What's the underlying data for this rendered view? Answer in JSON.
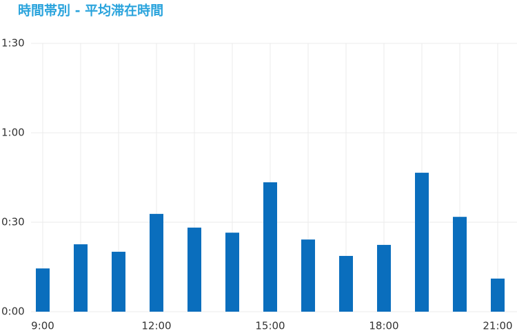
{
  "chart_data": {
    "type": "bar",
    "title": "時間帯別 - 平均滞在時間",
    "categories": [
      "9:00",
      null,
      null,
      "12:00",
      null,
      null,
      "15:00",
      null,
      null,
      "18:00",
      null,
      null,
      "21:00"
    ],
    "values": [
      14.5,
      22.6,
      20.1,
      32.8,
      28.2,
      26.5,
      43.4,
      24.2,
      18.7,
      22.4,
      46.6,
      31.8,
      11.1
    ],
    "color": "#0a6ebd",
    "ylim": [
      0,
      90
    ],
    "yticks": [
      {
        "value": 0,
        "label": "0:00"
      },
      {
        "value": 30,
        "label": "0:30"
      },
      {
        "value": 60,
        "label": "1:00"
      },
      {
        "value": 90,
        "label": "1:30"
      }
    ],
    "grid": true
  }
}
